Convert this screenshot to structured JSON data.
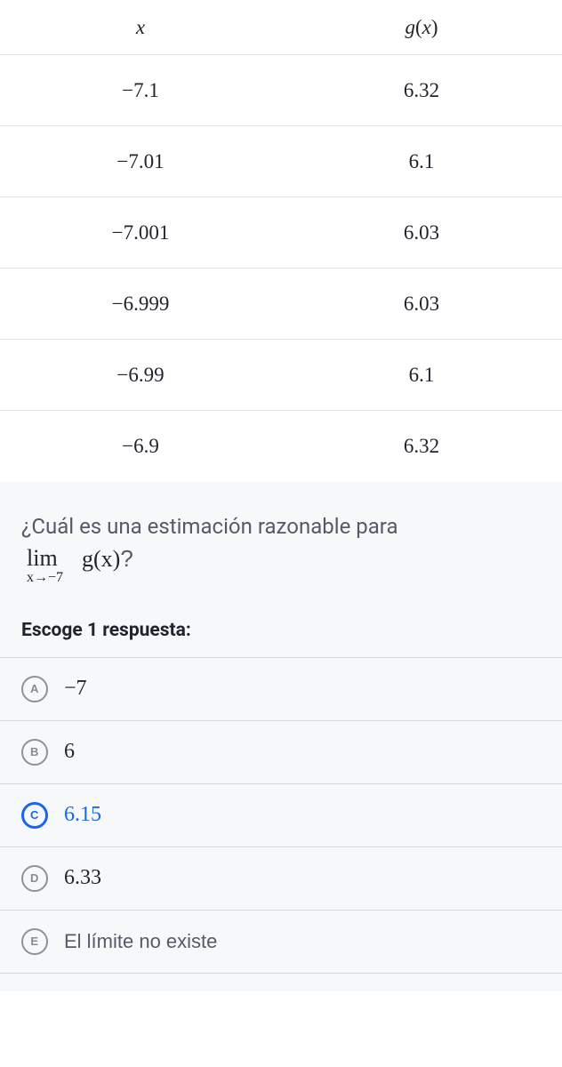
{
  "table": {
    "headers": {
      "col1": "x",
      "col2": "g(x)"
    },
    "rows": [
      {
        "x": "−7.1",
        "gx": "6.32"
      },
      {
        "x": "−7.01",
        "gx": "6.1"
      },
      {
        "x": "−7.001",
        "gx": "6.03"
      },
      {
        "x": "−6.999",
        "gx": "6.03"
      },
      {
        "x": "−6.99",
        "gx": "6.1"
      },
      {
        "x": "−6.9",
        "gx": "6.32"
      }
    ]
  },
  "question": {
    "prompt": "¿Cuál es una estimación razonable para",
    "limit_top": "lim",
    "limit_sub": "x→−7",
    "limit_expr": "g(x)",
    "qmark": "?",
    "instruction": "Escoge 1 respuesta:"
  },
  "choices": [
    {
      "letter": "A",
      "label": "−7",
      "selected": false,
      "sans": false
    },
    {
      "letter": "B",
      "label": "6",
      "selected": false,
      "sans": false
    },
    {
      "letter": "C",
      "label": "6.15",
      "selected": true,
      "sans": false
    },
    {
      "letter": "D",
      "label": "6.33",
      "selected": false,
      "sans": false
    },
    {
      "letter": "E",
      "label": "El límite no existe",
      "selected": false,
      "sans": true
    }
  ],
  "colors": {
    "border": "#e4e5e7",
    "bg_question": "#f7f8fa",
    "accent": "#1865f2",
    "text": "#21242c",
    "muted": "#555a66"
  }
}
